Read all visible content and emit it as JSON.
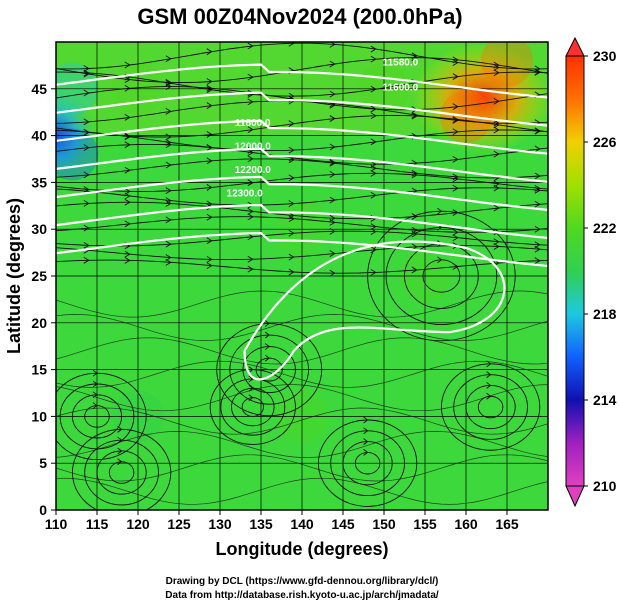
{
  "chart_data": {
    "type": "heatmap",
    "title": "GSM 00Z04Nov2024 (200.0hPa)",
    "xlabel": "Longitude (degrees)",
    "ylabel": "Latitude  (degrees)",
    "xlim": [
      110,
      170
    ],
    "ylim": [
      0,
      50
    ],
    "x_ticks": [
      "110",
      "115",
      "120",
      "125",
      "130",
      "135",
      "140",
      "145",
      "150",
      "155",
      "160",
      "165"
    ],
    "y_ticks": [
      "0",
      "5",
      "10",
      "15",
      "20",
      "25",
      "30",
      "35",
      "40",
      "45"
    ],
    "grid": true,
    "colorbar": {
      "range": [
        210,
        230
      ],
      "ticks": [
        "210",
        "214",
        "218",
        "222",
        "226",
        "230"
      ],
      "colors": [
        "#e040c0",
        "#1010b0",
        "#1e90ff",
        "#22c8c8",
        "#30d030",
        "#70e020",
        "#c8e000",
        "#ffb000",
        "#ff4000"
      ]
    },
    "field_samples": [
      {
        "lon": 112,
        "lat": 45,
        "value": 219
      },
      {
        "lon": 112,
        "lat": 38,
        "value": 216
      },
      {
        "lon": 120,
        "lat": 45,
        "value": 222
      },
      {
        "lon": 150,
        "lat": 45,
        "value": 223
      },
      {
        "lon": 160,
        "lat": 42,
        "value": 228
      },
      {
        "lon": 165,
        "lat": 48,
        "value": 229
      },
      {
        "lon": 140,
        "lat": 30,
        "value": 222
      },
      {
        "lon": 155,
        "lat": 25,
        "value": 222
      },
      {
        "lon": 120,
        "lat": 10,
        "value": 221
      },
      {
        "lon": 140,
        "lat": 10,
        "value": 222
      }
    ],
    "contour_labels": [
      "11580.0",
      "11600.0",
      "11800.0",
      "12000.0",
      "12200.0",
      "12300.0"
    ],
    "annotations": [
      "Drawing by DCL (https://www.gfd-dennou.org/library/dcl/)",
      "Data from http://database.rish.kyoto-u.ac.jp/arch/jmadata/"
    ]
  }
}
